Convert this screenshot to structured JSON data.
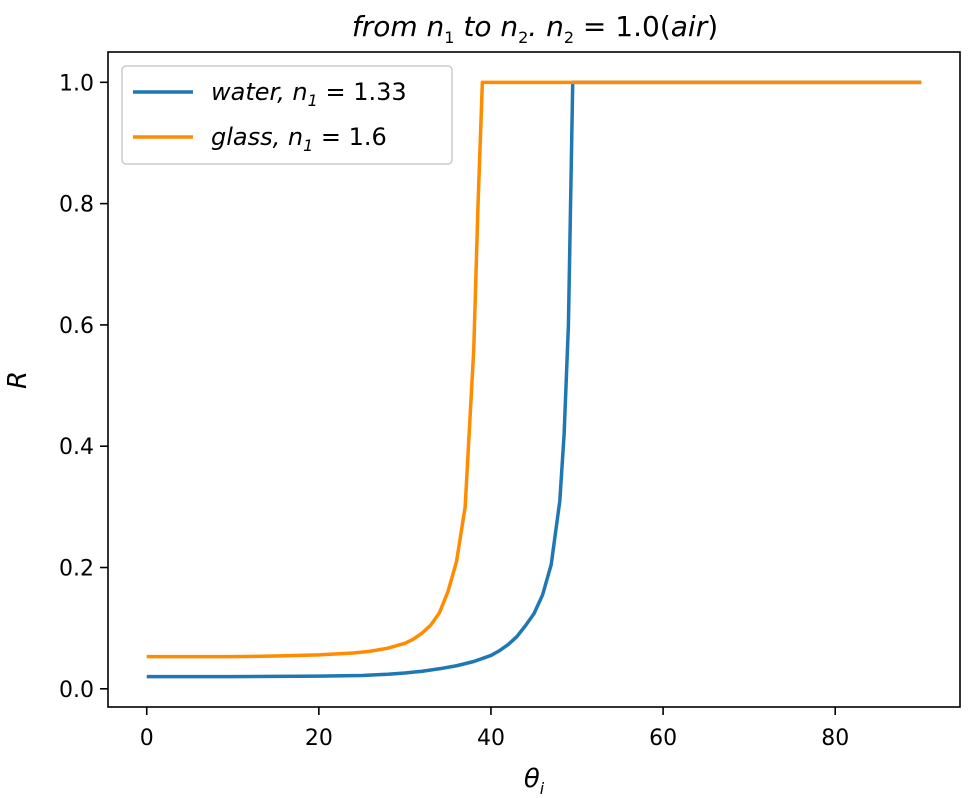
{
  "chart_data": {
    "type": "line",
    "title": {
      "part1": "from n",
      "sub1": "1",
      "part2": " to n",
      "sub2": "2",
      "part3": ".  n",
      "sub3": "2",
      "part4": " = 1.0(",
      "part5": "air",
      "part6": ")"
    },
    "xlabel": {
      "main": "θ",
      "sub": "i"
    },
    "ylabel": "R",
    "xlim": [
      -4.5,
      94.5
    ],
    "ylim": [
      -0.03,
      1.05
    ],
    "xticks": [
      0,
      20,
      40,
      60,
      80
    ],
    "xtick_labels": [
      "0",
      "20",
      "40",
      "60",
      "80"
    ],
    "yticks": [
      0.0,
      0.2,
      0.4,
      0.6,
      0.8,
      1.0
    ],
    "ytick_labels": [
      "0.0",
      "0.2",
      "0.4",
      "0.6",
      "0.8",
      "1.0"
    ],
    "grid": false,
    "legend_position": "upper-left",
    "series": [
      {
        "name": "water,  n",
        "name_sub": "1",
        "name_tail": " = 1.33",
        "color": "#1f77b4",
        "x": [
          0,
          5,
          10,
          15,
          20,
          25,
          28,
          30,
          32,
          34,
          36,
          38,
          40,
          41,
          42,
          43,
          44,
          45,
          46,
          47,
          48,
          48.5,
          49,
          49.5,
          50,
          60,
          70,
          80,
          90
        ],
        "y": [
          0.02,
          0.02,
          0.02,
          0.0205,
          0.021,
          0.022,
          0.024,
          0.026,
          0.029,
          0.033,
          0.038,
          0.045,
          0.055,
          0.063,
          0.073,
          0.086,
          0.104,
          0.124,
          0.155,
          0.205,
          0.31,
          0.42,
          0.6,
          1.0,
          1.0,
          1.0,
          1.0,
          1.0,
          1.0
        ]
      },
      {
        "name": "glass,  n",
        "name_sub": "1",
        "name_tail": " = 1.6",
        "color": "#ff8c00",
        "x": [
          0,
          5,
          10,
          15,
          20,
          24,
          26,
          28,
          30,
          31,
          32,
          33,
          34,
          35,
          36,
          37,
          38,
          38.5,
          39,
          39.5,
          40,
          50,
          60,
          70,
          80,
          90
        ],
        "y": [
          0.053,
          0.053,
          0.053,
          0.054,
          0.056,
          0.059,
          0.062,
          0.067,
          0.075,
          0.082,
          0.092,
          0.105,
          0.125,
          0.16,
          0.21,
          0.3,
          0.56,
          0.8,
          1.0,
          1.0,
          1.0,
          1.0,
          1.0,
          1.0,
          1.0,
          1.0
        ]
      }
    ]
  }
}
